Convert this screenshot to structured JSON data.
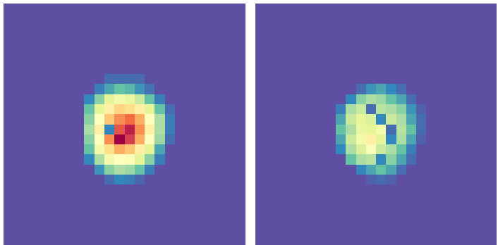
{
  "chart_data": [
    {
      "type": "heatmap",
      "zlim": [
        0,
        1
      ],
      "tick_labels": false,
      "cells": [
        [
          0,
          0,
          0,
          0,
          0,
          0,
          0,
          0,
          0,
          0,
          0,
          0,
          0,
          0,
          0,
          0,
          0,
          0,
          0,
          0,
          0,
          0,
          0,
          0
        ],
        [
          0,
          0,
          0,
          0,
          0,
          0,
          0,
          0,
          0,
          0,
          0,
          0,
          0,
          0,
          0,
          0,
          0,
          0,
          0,
          0,
          0,
          0,
          0,
          0
        ],
        [
          0,
          0,
          0,
          0,
          0,
          0,
          0,
          0,
          0,
          0,
          0,
          0,
          0,
          0,
          0,
          0,
          0,
          0,
          0,
          0,
          0,
          0,
          0,
          0
        ],
        [
          0,
          0,
          0,
          0,
          0,
          0,
          0,
          0,
          0,
          0,
          0,
          0,
          0,
          0,
          0,
          0,
          0,
          0,
          0,
          0,
          0,
          0,
          0,
          0
        ],
        [
          0,
          0,
          0,
          0,
          0,
          0,
          0,
          0,
          0,
          0,
          0,
          0,
          0,
          0,
          0,
          0,
          0,
          0,
          0,
          0,
          0,
          0,
          0,
          0
        ],
        [
          0,
          0,
          0,
          0,
          0,
          0,
          0,
          0,
          0,
          0,
          0,
          0,
          0,
          0,
          0,
          0,
          0,
          0,
          0,
          0,
          0,
          0,
          0,
          0
        ],
        [
          0,
          0,
          0,
          0,
          0,
          0,
          0,
          0,
          0,
          0,
          0,
          0,
          0,
          0,
          0,
          0,
          0,
          0,
          0,
          0,
          0,
          0,
          0,
          0
        ],
        [
          0,
          0,
          0,
          0,
          0,
          0,
          0,
          0,
          0,
          0,
          0.05,
          0.05,
          0.05,
          0.05,
          0,
          0,
          0,
          0,
          0,
          0,
          0,
          0,
          0,
          0
        ],
        [
          0,
          0,
          0,
          0,
          0,
          0,
          0,
          0,
          0,
          0.08,
          0.15,
          0.2,
          0.18,
          0.12,
          0.06,
          0,
          0,
          0,
          0,
          0,
          0,
          0,
          0,
          0
        ],
        [
          0,
          0,
          0,
          0,
          0,
          0,
          0,
          0,
          0.1,
          0.25,
          0.4,
          0.45,
          0.42,
          0.35,
          0.2,
          0.08,
          0,
          0,
          0,
          0,
          0,
          0,
          0,
          0
        ],
        [
          0,
          0,
          0,
          0,
          0,
          0,
          0,
          0,
          0.2,
          0.4,
          0.55,
          0.62,
          0.6,
          0.55,
          0.4,
          0.2,
          0.05,
          0,
          0,
          0,
          0,
          0,
          0,
          0
        ],
        [
          0,
          0,
          0,
          0,
          0,
          0,
          0,
          0,
          0.25,
          0.5,
          0.65,
          0.75,
          0.8,
          0.7,
          0.5,
          0.3,
          0.08,
          0,
          0,
          0,
          0,
          0,
          0,
          0
        ],
        [
          0,
          0,
          0,
          0,
          0,
          0,
          0,
          0,
          0.3,
          0.55,
          0.1,
          0.85,
          0.95,
          0.75,
          0.55,
          0.3,
          0.08,
          0,
          0,
          0,
          0,
          0,
          0,
          0
        ],
        [
          0,
          0,
          0,
          0,
          0,
          0,
          0,
          0,
          0.25,
          0.5,
          0.75,
          1.0,
          0.9,
          0.7,
          0.5,
          0.28,
          0.05,
          0,
          0,
          0,
          0,
          0,
          0,
          0
        ],
        [
          0,
          0,
          0,
          0,
          0,
          0,
          0,
          0,
          0.2,
          0.45,
          0.6,
          0.7,
          0.65,
          0.55,
          0.4,
          0.15,
          0,
          0,
          0,
          0,
          0,
          0,
          0,
          0
        ],
        [
          0,
          0,
          0,
          0,
          0,
          0,
          0,
          0,
          0.1,
          0.3,
          0.45,
          0.5,
          0.48,
          0.4,
          0.25,
          0.08,
          0,
          0,
          0,
          0,
          0,
          0,
          0,
          0
        ],
        [
          0,
          0,
          0,
          0,
          0,
          0,
          0,
          0,
          0,
          0.12,
          0.25,
          0.3,
          0.28,
          0.2,
          0.08,
          0,
          0,
          0,
          0,
          0,
          0,
          0,
          0,
          0
        ],
        [
          0,
          0,
          0,
          0,
          0,
          0,
          0,
          0,
          0,
          0,
          0.05,
          0.1,
          0.08,
          0.04,
          0,
          0,
          0,
          0,
          0,
          0,
          0,
          0,
          0,
          0
        ],
        [
          0,
          0,
          0,
          0,
          0,
          0,
          0,
          0,
          0,
          0,
          0,
          0,
          0,
          0,
          0,
          0,
          0,
          0,
          0,
          0,
          0,
          0,
          0,
          0
        ],
        [
          0,
          0,
          0,
          0,
          0,
          0,
          0,
          0,
          0,
          0,
          0,
          0,
          0,
          0,
          0,
          0,
          0,
          0,
          0,
          0,
          0,
          0,
          0,
          0
        ],
        [
          0,
          0,
          0,
          0,
          0,
          0,
          0,
          0,
          0,
          0,
          0,
          0,
          0,
          0,
          0,
          0,
          0,
          0,
          0,
          0,
          0,
          0,
          0,
          0
        ],
        [
          0,
          0,
          0,
          0,
          0,
          0,
          0,
          0,
          0,
          0,
          0,
          0,
          0,
          0,
          0,
          0,
          0,
          0,
          0,
          0,
          0,
          0,
          0,
          0
        ],
        [
          0,
          0,
          0,
          0,
          0,
          0,
          0,
          0,
          0,
          0,
          0,
          0,
          0,
          0,
          0,
          0,
          0,
          0,
          0,
          0,
          0,
          0,
          0,
          0
        ],
        [
          0,
          0,
          0,
          0,
          0,
          0,
          0,
          0,
          0,
          0,
          0,
          0,
          0,
          0,
          0,
          0,
          0,
          0,
          0,
          0,
          0,
          0,
          0,
          0
        ]
      ]
    },
    {
      "type": "heatmap",
      "zlim": [
        0,
        1
      ],
      "tick_labels": false,
      "cells": [
        [
          0,
          0,
          0,
          0,
          0,
          0,
          0,
          0,
          0,
          0,
          0,
          0,
          0,
          0,
          0,
          0,
          0,
          0,
          0,
          0,
          0,
          0,
          0,
          0
        ],
        [
          0,
          0,
          0,
          0,
          0,
          0,
          0,
          0,
          0,
          0,
          0,
          0,
          0,
          0,
          0,
          0,
          0,
          0,
          0,
          0,
          0,
          0,
          0,
          0
        ],
        [
          0,
          0,
          0,
          0,
          0,
          0,
          0,
          0,
          0,
          0,
          0,
          0,
          0,
          0,
          0,
          0,
          0,
          0,
          0,
          0,
          0,
          0,
          0,
          0
        ],
        [
          0,
          0,
          0,
          0,
          0,
          0,
          0,
          0,
          0,
          0,
          0,
          0,
          0,
          0,
          0,
          0,
          0,
          0,
          0,
          0,
          0,
          0,
          0,
          0
        ],
        [
          0,
          0,
          0,
          0,
          0,
          0,
          0,
          0,
          0,
          0,
          0,
          0,
          0,
          0,
          0,
          0,
          0,
          0,
          0,
          0,
          0,
          0,
          0,
          0
        ],
        [
          0,
          0,
          0,
          0,
          0,
          0,
          0,
          0,
          0,
          0,
          0,
          0,
          0,
          0,
          0,
          0,
          0,
          0,
          0,
          0,
          0,
          0,
          0,
          0
        ],
        [
          0,
          0,
          0,
          0,
          0,
          0,
          0,
          0,
          0,
          0,
          0,
          0,
          0,
          0,
          0,
          0,
          0,
          0,
          0,
          0,
          0,
          0,
          0,
          0
        ],
        [
          0,
          0,
          0,
          0,
          0,
          0,
          0,
          0,
          0,
          0,
          0,
          0,
          0,
          0,
          0,
          0,
          0,
          0,
          0,
          0,
          0,
          0,
          0,
          0
        ],
        [
          0,
          0,
          0,
          0,
          0,
          0,
          0,
          0,
          0,
          0,
          0.05,
          0.12,
          0.15,
          0.1,
          0.05,
          0,
          0,
          0,
          0,
          0,
          0,
          0,
          0,
          0
        ],
        [
          0,
          0,
          0,
          0,
          0,
          0,
          0,
          0,
          0,
          0.1,
          0.25,
          0.3,
          0.28,
          0.2,
          0.15,
          0.05,
          0,
          0,
          0,
          0,
          0,
          0,
          0,
          0
        ],
        [
          0,
          0,
          0,
          0,
          0,
          0,
          0,
          0,
          0.08,
          0.3,
          0.35,
          0.05,
          0.32,
          0.3,
          0.25,
          0.12,
          0.03,
          0,
          0,
          0,
          0,
          0,
          0,
          0
        ],
        [
          0,
          0,
          0,
          0,
          0,
          0,
          0,
          0,
          0.15,
          0.35,
          0.4,
          0.38,
          0.1,
          0.35,
          0.3,
          0.15,
          0.05,
          0,
          0,
          0,
          0,
          0,
          0,
          0
        ],
        [
          0,
          0,
          0,
          0,
          0,
          0,
          0,
          0,
          0.2,
          0.3,
          0.42,
          0.4,
          0.45,
          0.05,
          0.32,
          0.2,
          0.05,
          0,
          0,
          0,
          0,
          0,
          0,
          0
        ],
        [
          0,
          0,
          0,
          0,
          0,
          0,
          0,
          0,
          0.15,
          0.35,
          0.45,
          0.55,
          0.4,
          0.1,
          0.3,
          0.15,
          0.03,
          0,
          0,
          0,
          0,
          0,
          0,
          0
        ],
        [
          0,
          0,
          0,
          0,
          0,
          0,
          0,
          0,
          0.1,
          0.3,
          0.38,
          0.48,
          0.35,
          0.3,
          0.2,
          0.08,
          0,
          0,
          0,
          0,
          0,
          0,
          0,
          0
        ],
        [
          0,
          0,
          0,
          0,
          0,
          0,
          0,
          0,
          0,
          0.2,
          0.3,
          0.32,
          0.1,
          0.25,
          0.15,
          0.05,
          0,
          0,
          0,
          0,
          0,
          0,
          0,
          0
        ],
        [
          0,
          0,
          0,
          0,
          0,
          0,
          0,
          0,
          0,
          0,
          0.1,
          0.15,
          0.2,
          0.15,
          0.05,
          0,
          0,
          0,
          0,
          0,
          0,
          0,
          0,
          0
        ],
        [
          0,
          0,
          0,
          0,
          0,
          0,
          0,
          0,
          0,
          0,
          0,
          0.03,
          0.05,
          0.03,
          0,
          0,
          0,
          0,
          0,
          0,
          0,
          0,
          0,
          0
        ],
        [
          0,
          0,
          0,
          0,
          0,
          0,
          0,
          0,
          0,
          0,
          0,
          0,
          0,
          0,
          0,
          0,
          0,
          0,
          0,
          0,
          0,
          0,
          0,
          0
        ],
        [
          0,
          0,
          0,
          0,
          0,
          0,
          0,
          0,
          0,
          0,
          0,
          0,
          0,
          0,
          0,
          0,
          0,
          0,
          0,
          0,
          0,
          0,
          0,
          0
        ],
        [
          0,
          0,
          0,
          0,
          0,
          0,
          0,
          0,
          0,
          0,
          0,
          0,
          0,
          0,
          0,
          0,
          0,
          0,
          0,
          0,
          0,
          0,
          0,
          0
        ],
        [
          0,
          0,
          0,
          0,
          0,
          0,
          0,
          0,
          0,
          0,
          0,
          0,
          0,
          0,
          0,
          0,
          0,
          0,
          0,
          0,
          0,
          0,
          0,
          0
        ],
        [
          0,
          0,
          0,
          0,
          0,
          0,
          0,
          0,
          0,
          0,
          0,
          0,
          0,
          0,
          0,
          0,
          0,
          0,
          0,
          0,
          0,
          0,
          0,
          0
        ],
        [
          0,
          0,
          0,
          0,
          0,
          0,
          0,
          0,
          0,
          0,
          0,
          0,
          0,
          0,
          0,
          0,
          0,
          0,
          0,
          0,
          0,
          0,
          0,
          0
        ]
      ]
    }
  ]
}
